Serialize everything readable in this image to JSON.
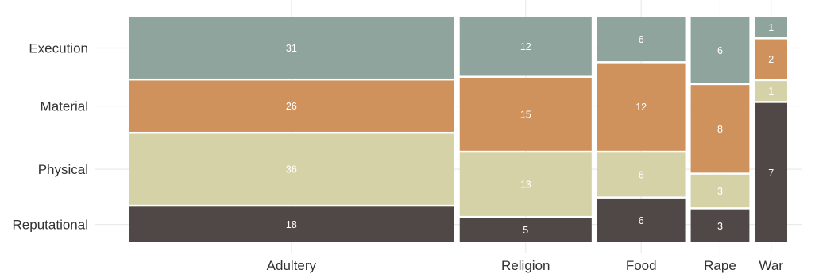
{
  "chart_data": {
    "type": "mosaic",
    "categories": [
      "Adultery",
      "Religion",
      "Food",
      "Rape",
      "War"
    ],
    "series": [
      {
        "name": "Execution",
        "color": "#8fa49d",
        "values": [
          31,
          12,
          6,
          6,
          1
        ]
      },
      {
        "name": "Material",
        "color": "#cf925c",
        "values": [
          26,
          15,
          12,
          8,
          2
        ]
      },
      {
        "name": "Physical",
        "color": "#d5d2a8",
        "values": [
          36,
          13,
          6,
          3,
          1
        ]
      },
      {
        "name": "Reputational",
        "color": "#4f4846",
        "values": [
          18,
          5,
          6,
          3,
          7
        ]
      }
    ],
    "y_tick_labels": [
      "Execution",
      "Material",
      "Physical",
      "Reputational"
    ],
    "title": "",
    "xlabel": "",
    "ylabel": "",
    "grid": true,
    "legend": "none"
  }
}
